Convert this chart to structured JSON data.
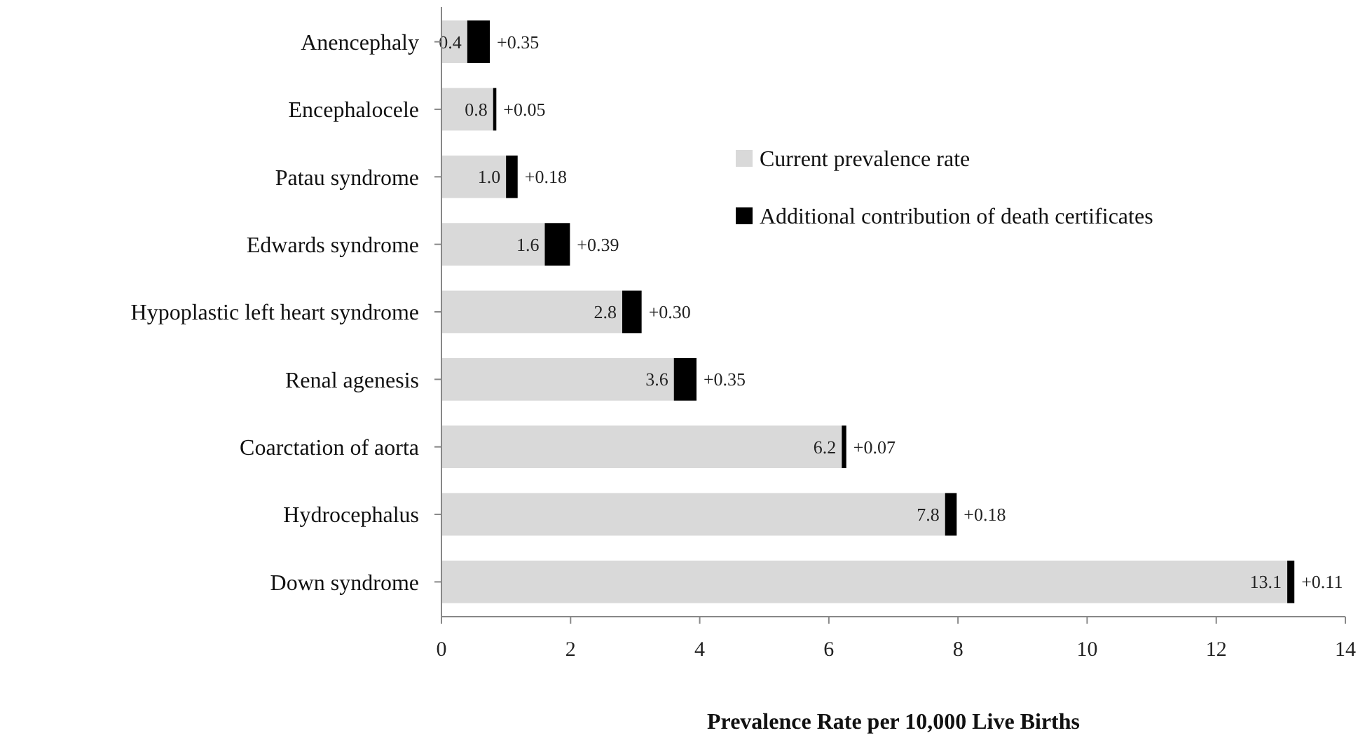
{
  "chart_data": {
    "type": "bar",
    "orientation": "horizontal",
    "stacked": true,
    "xlabel": "Prevalence Rate per 10,000 Live Births",
    "categories": [
      "Anencephaly",
      "Encephalocele",
      "Patau syndrome",
      "Edwards syndrome",
      "Hypoplastic left heart syndrome",
      "Renal agenesis",
      "Coarctation of aorta",
      "Hydrocephalus",
      "Down syndrome"
    ],
    "series": [
      {
        "name": "Current prevalence rate",
        "color": "#d9d9d9",
        "values": [
          0.4,
          0.8,
          1.0,
          1.6,
          2.8,
          3.6,
          6.2,
          7.8,
          13.1
        ],
        "value_labels": [
          "0.4",
          "0.8",
          "1.0",
          "1.6",
          "2.8",
          "3.6",
          "6.2",
          "7.8",
          "13.1"
        ]
      },
      {
        "name": "Additional contribution of death certificates",
        "color": "#000000",
        "values": [
          0.35,
          0.05,
          0.18,
          0.39,
          0.3,
          0.35,
          0.07,
          0.18,
          0.11
        ],
        "value_labels": [
          "+0.35",
          "+0.05",
          "+0.18",
          "+0.39",
          "+0.30",
          "+0.35",
          "+0.07",
          "+0.18",
          "+0.11"
        ]
      }
    ],
    "xlim": [
      0,
      14
    ],
    "xticks": [
      0,
      2,
      4,
      6,
      8,
      10,
      12,
      14
    ],
    "grid": false,
    "legend": "top right"
  }
}
